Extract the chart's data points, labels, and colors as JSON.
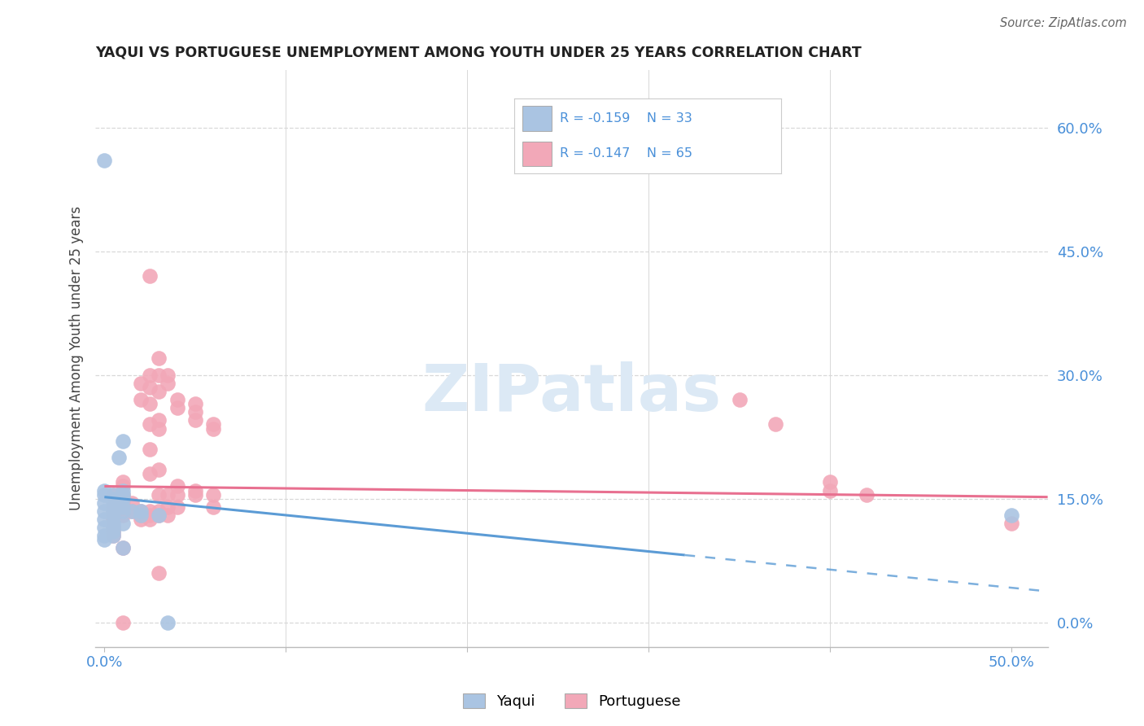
{
  "title": "YAQUI VS PORTUGUESE UNEMPLOYMENT AMONG YOUTH UNDER 25 YEARS CORRELATION CHART",
  "source": "Source: ZipAtlas.com",
  "ylabel": "Unemployment Among Youth under 25 years",
  "yticks": [
    "0.0%",
    "15.0%",
    "30.0%",
    "45.0%",
    "60.0%"
  ],
  "ytick_vals": [
    0.0,
    0.15,
    0.3,
    0.45,
    0.6
  ],
  "xtick_vals": [
    0.0,
    0.1,
    0.2,
    0.3,
    0.4,
    0.5
  ],
  "xtick_labels": [
    "0.0%",
    "",
    "",
    "",
    "",
    "50.0%"
  ],
  "xlim": [
    -0.005,
    0.52
  ],
  "ylim": [
    -0.03,
    0.67
  ],
  "yaqui_color": "#aac4e2",
  "portuguese_color": "#f2a8b8",
  "yaqui_line_color": "#5b9bd5",
  "portuguese_line_color": "#e87090",
  "background_color": "#ffffff",
  "grid_color": "#d8d8d8",
  "text_color": "#4a90d9",
  "watermark_text": "ZIPatlas",
  "watermark_color": "#dce9f5",
  "yaqui_scatter": [
    [
      0.0,
      0.155
    ],
    [
      0.0,
      0.16
    ],
    [
      0.0,
      0.145
    ],
    [
      0.0,
      0.135
    ],
    [
      0.0,
      0.125
    ],
    [
      0.0,
      0.115
    ],
    [
      0.0,
      0.105
    ],
    [
      0.0,
      0.1
    ],
    [
      0.0,
      0.56
    ],
    [
      0.005,
      0.155
    ],
    [
      0.005,
      0.15
    ],
    [
      0.005,
      0.145
    ],
    [
      0.005,
      0.14
    ],
    [
      0.005,
      0.135
    ],
    [
      0.005,
      0.13
    ],
    [
      0.005,
      0.12
    ],
    [
      0.005,
      0.115
    ],
    [
      0.005,
      0.11
    ],
    [
      0.005,
      0.105
    ],
    [
      0.008,
      0.2
    ],
    [
      0.01,
      0.22
    ],
    [
      0.01,
      0.16
    ],
    [
      0.01,
      0.155
    ],
    [
      0.01,
      0.15
    ],
    [
      0.01,
      0.14
    ],
    [
      0.01,
      0.135
    ],
    [
      0.01,
      0.12
    ],
    [
      0.01,
      0.09
    ],
    [
      0.015,
      0.135
    ],
    [
      0.02,
      0.135
    ],
    [
      0.02,
      0.13
    ],
    [
      0.03,
      0.13
    ],
    [
      0.035,
      0.0
    ],
    [
      0.5,
      0.13
    ]
  ],
  "portuguese_scatter": [
    [
      0.005,
      0.155
    ],
    [
      0.005,
      0.14
    ],
    [
      0.005,
      0.135
    ],
    [
      0.005,
      0.13
    ],
    [
      0.005,
      0.125
    ],
    [
      0.005,
      0.115
    ],
    [
      0.005,
      0.11
    ],
    [
      0.005,
      0.105
    ],
    [
      0.01,
      0.17
    ],
    [
      0.01,
      0.165
    ],
    [
      0.01,
      0.155
    ],
    [
      0.01,
      0.15
    ],
    [
      0.01,
      0.145
    ],
    [
      0.01,
      0.14
    ],
    [
      0.01,
      0.13
    ],
    [
      0.01,
      0.09
    ],
    [
      0.01,
      0.0
    ],
    [
      0.015,
      0.145
    ],
    [
      0.015,
      0.135
    ],
    [
      0.02,
      0.29
    ],
    [
      0.02,
      0.27
    ],
    [
      0.02,
      0.135
    ],
    [
      0.02,
      0.13
    ],
    [
      0.02,
      0.125
    ],
    [
      0.025,
      0.42
    ],
    [
      0.025,
      0.3
    ],
    [
      0.025,
      0.285
    ],
    [
      0.025,
      0.265
    ],
    [
      0.025,
      0.24
    ],
    [
      0.025,
      0.21
    ],
    [
      0.025,
      0.18
    ],
    [
      0.025,
      0.135
    ],
    [
      0.025,
      0.13
    ],
    [
      0.025,
      0.125
    ],
    [
      0.03,
      0.32
    ],
    [
      0.03,
      0.3
    ],
    [
      0.03,
      0.28
    ],
    [
      0.03,
      0.245
    ],
    [
      0.03,
      0.235
    ],
    [
      0.03,
      0.185
    ],
    [
      0.03,
      0.155
    ],
    [
      0.03,
      0.135
    ],
    [
      0.03,
      0.13
    ],
    [
      0.03,
      0.06
    ],
    [
      0.035,
      0.3
    ],
    [
      0.035,
      0.29
    ],
    [
      0.035,
      0.155
    ],
    [
      0.035,
      0.14
    ],
    [
      0.035,
      0.13
    ],
    [
      0.04,
      0.27
    ],
    [
      0.04,
      0.26
    ],
    [
      0.04,
      0.165
    ],
    [
      0.04,
      0.155
    ],
    [
      0.04,
      0.14
    ],
    [
      0.05,
      0.265
    ],
    [
      0.05,
      0.255
    ],
    [
      0.05,
      0.245
    ],
    [
      0.05,
      0.16
    ],
    [
      0.05,
      0.155
    ],
    [
      0.06,
      0.24
    ],
    [
      0.06,
      0.235
    ],
    [
      0.06,
      0.155
    ],
    [
      0.06,
      0.14
    ],
    [
      0.35,
      0.27
    ],
    [
      0.37,
      0.24
    ],
    [
      0.4,
      0.17
    ],
    [
      0.4,
      0.16
    ],
    [
      0.42,
      0.155
    ],
    [
      0.5,
      0.12
    ]
  ],
  "yaqui_trend": {
    "slope": -0.22,
    "intercept": 0.152
  },
  "portuguese_trend": {
    "slope": -0.025,
    "intercept": 0.165
  }
}
